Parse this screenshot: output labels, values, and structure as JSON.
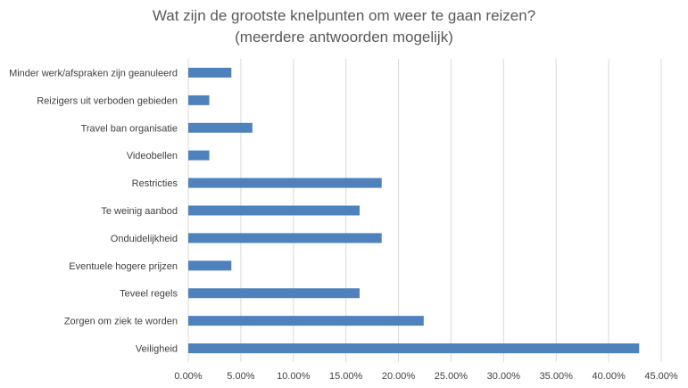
{
  "chart_data": {
    "type": "bar",
    "orientation": "horizontal",
    "title": "Wat zijn de grootste knelpunten om weer te gaan reizen?",
    "subtitle": "(meerdere antwoorden mogelijk)",
    "categories": [
      "Minder werk/afspraken zijn geanuleerd",
      "Reizigers uit verboden gebieden",
      "Travel ban organisatie",
      "Videobellen",
      "Restricties",
      "Te weinig aanbod",
      "Onduidelijkheid",
      "Eventuele hogere prijzen",
      "Teveel regels",
      "Zorgen om ziek te worden",
      "Veiligheid"
    ],
    "values": [
      4.1,
      2.0,
      6.1,
      2.0,
      18.4,
      16.3,
      18.4,
      4.1,
      16.3,
      22.4,
      42.9
    ],
    "xlim": [
      0,
      45
    ],
    "x_ticks": [
      "0.00%",
      "5.00%",
      "10.00%",
      "15.00%",
      "20.00%",
      "25.00%",
      "30.00%",
      "35.00%",
      "40.00%",
      "45.00%"
    ],
    "grid": "vertical",
    "bar_color": "#4f81bd",
    "grid_color": "#d9d9d9"
  }
}
